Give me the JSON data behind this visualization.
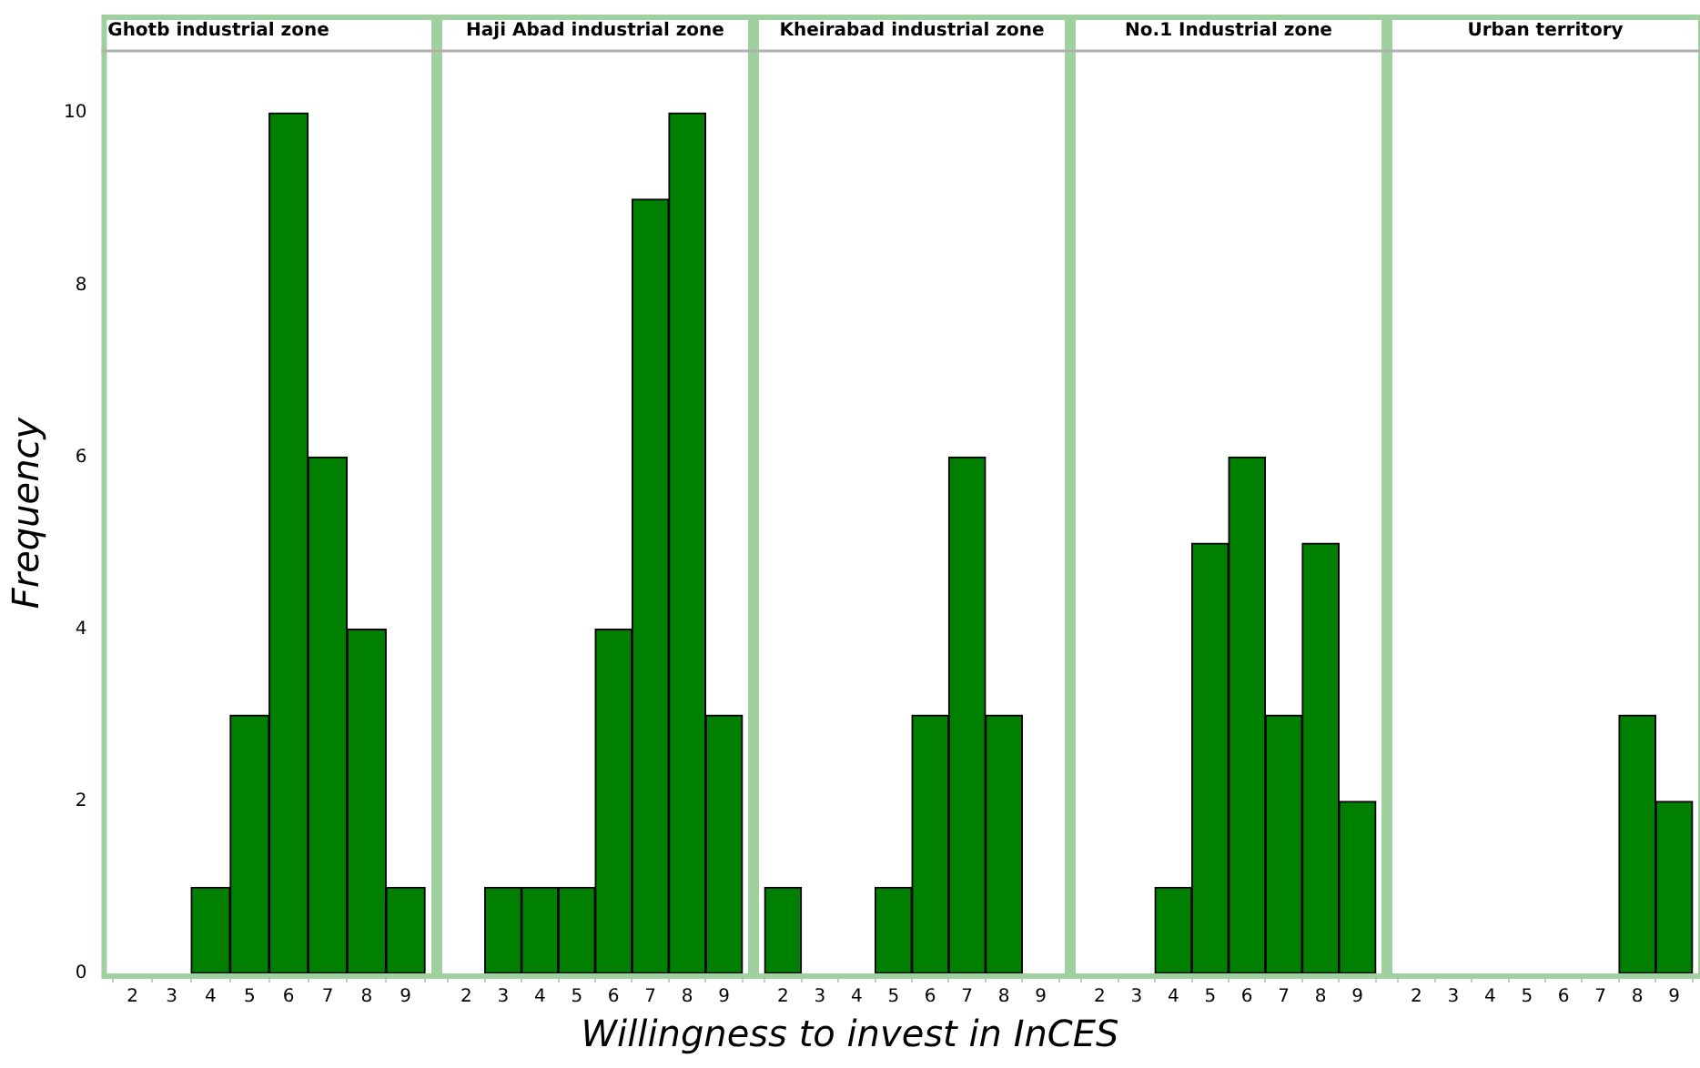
{
  "chart_data": [
    {
      "type": "histogram",
      "title": "Ghotb industrial zone",
      "ylabel": "Frequency",
      "bins": [
        1.5,
        2.5,
        3.5,
        4.5,
        5.5,
        6.5,
        7.5,
        8.5,
        9.5
      ],
      "values": [
        0,
        0,
        1,
        3,
        10,
        6,
        4,
        1
      ],
      "color": "#008000",
      "xlim": [
        1.2,
        9.8
      ],
      "xticks": [
        2,
        3,
        4,
        5,
        6,
        7,
        8,
        9
      ],
      "ylim": [
        0,
        10.7
      ],
      "yticks": [
        0,
        2,
        4,
        6,
        8,
        10
      ]
    },
    {
      "type": "histogram",
      "title": "Haji Abad industrial zone",
      "bins": [
        1.5,
        2.5,
        3.5,
        4.5,
        5.5,
        6.5,
        7.5,
        8.5,
        9.5
      ],
      "values": [
        0,
        1,
        1,
        1,
        4,
        9,
        10,
        3
      ],
      "color": "#008000",
      "xlim": [
        1.2,
        9.8
      ],
      "xticks": [
        2,
        3,
        4,
        5,
        6,
        7,
        8,
        9
      ],
      "ylim": [
        0,
        10.7
      ],
      "yticks": [
        0,
        2,
        4,
        6,
        8,
        10
      ],
      "tick_labels": "x"
    },
    {
      "type": "histogram",
      "title": "Kheirabad industrial zone",
      "xlabel": "Willingness to invest in InCES",
      "bins": [
        1.5,
        2.5,
        3.5,
        4.5,
        5.5,
        6.5,
        7.5,
        8.5,
        9.5
      ],
      "values": [
        1,
        0,
        0,
        1,
        3,
        6,
        3,
        0
      ],
      "color": "#008000",
      "xlim": [
        1.2,
        9.8
      ],
      "xticks": [
        2,
        3,
        4,
        5,
        6,
        7,
        8,
        9
      ],
      "ylim": [
        0,
        10.7
      ],
      "yticks": [
        0,
        2,
        4,
        6,
        8,
        10
      ],
      "tick_labels": "x"
    },
    {
      "type": "histogram",
      "title": "No.1 Industrial zone",
      "bins": [
        1.5,
        2.5,
        3.5,
        4.5,
        5.5,
        6.5,
        7.5,
        8.5,
        9.5
      ],
      "values": [
        0,
        0,
        1,
        5,
        6,
        3,
        5,
        2
      ],
      "color": "#008000",
      "xlim": [
        1.2,
        9.8
      ],
      "xticks": [
        2,
        3,
        4,
        5,
        6,
        7,
        8,
        9
      ],
      "ylim": [
        0,
        10.7
      ],
      "yticks": [
        0,
        2,
        4,
        6,
        8,
        10
      ],
      "tick_labels": "x"
    },
    {
      "type": "histogram",
      "title": "Urban territory",
      "bins": [
        1.5,
        2.5,
        3.5,
        4.5,
        5.5,
        6.5,
        7.5,
        8.5,
        9.5
      ],
      "values": [
        0,
        0,
        0,
        0,
        0,
        0,
        3,
        2
      ],
      "color": "#008000",
      "xlim": [
        1.2,
        9.8
      ],
      "xticks": [
        2,
        3,
        4,
        5,
        6,
        7,
        8,
        9
      ],
      "ylim": [
        0,
        10.7
      ],
      "yticks": [
        0,
        2,
        4,
        6,
        8,
        10
      ],
      "tick_labels": "x"
    }
  ]
}
